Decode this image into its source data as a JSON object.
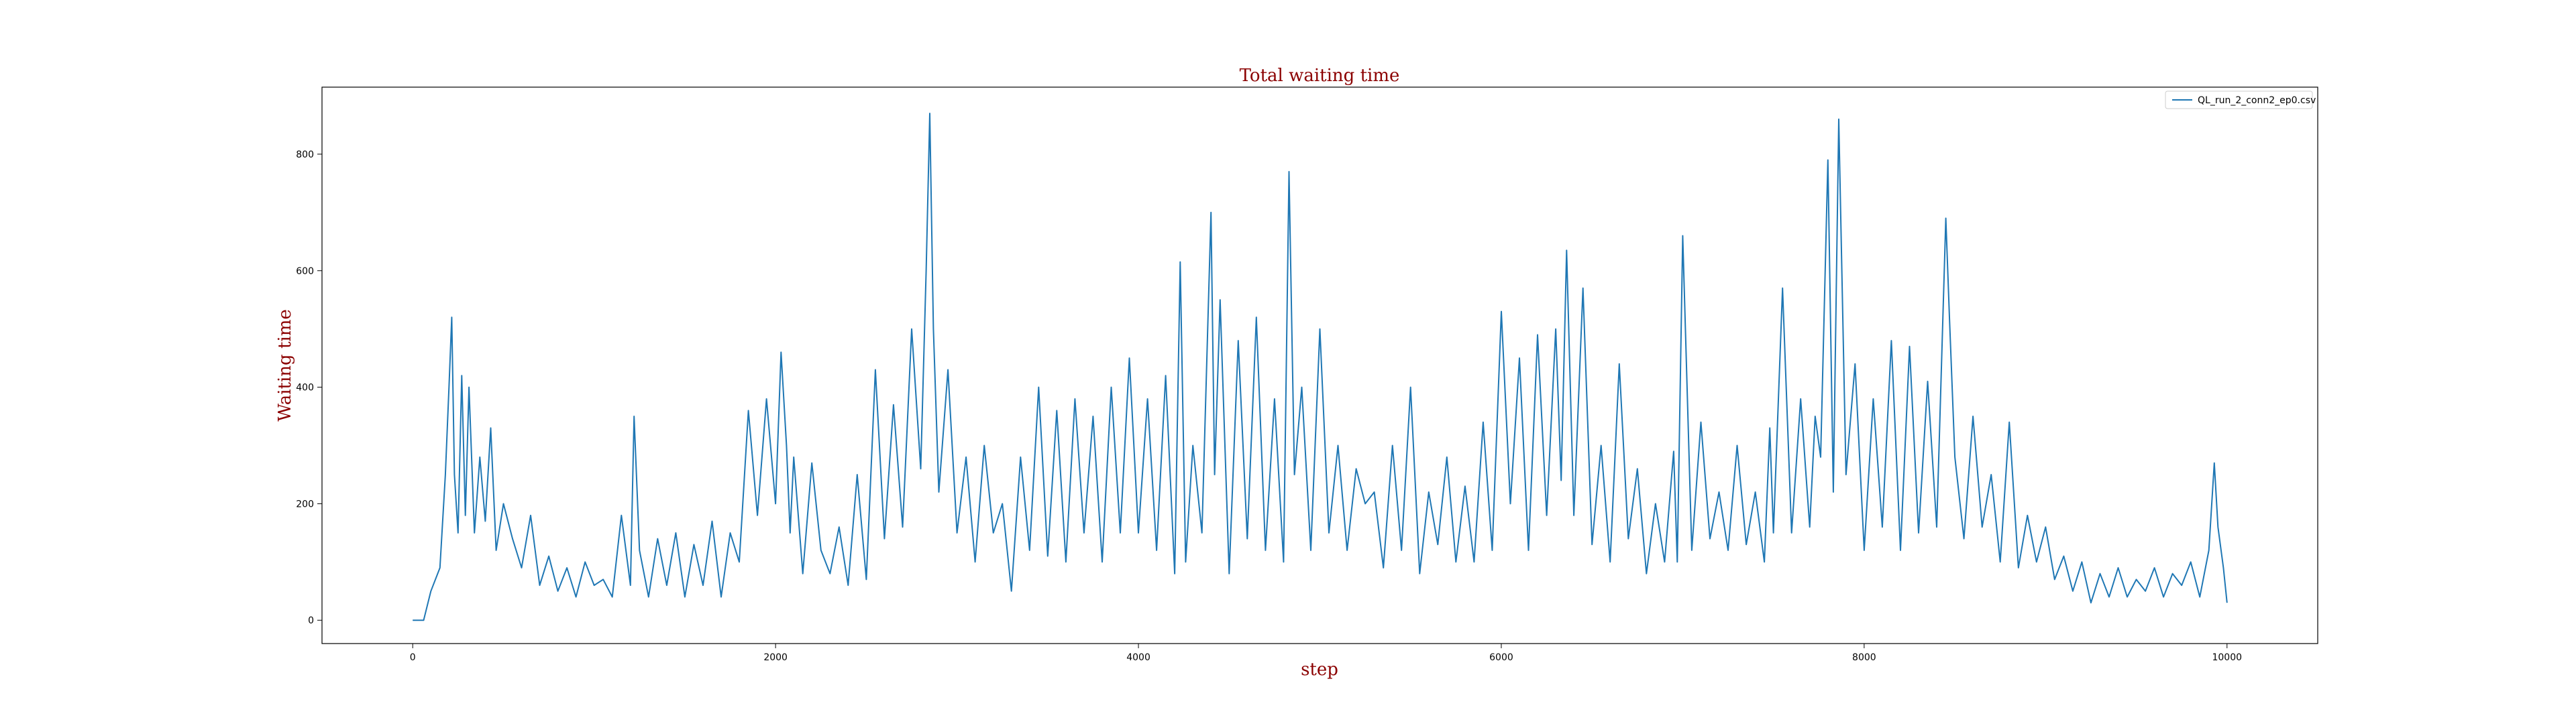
{
  "chart_data": {
    "type": "line",
    "title": "Total waiting time",
    "xlabel": "step",
    "ylabel": "Waiting time",
    "xlim": [
      -500,
      10500
    ],
    "ylim": [
      -40,
      915
    ],
    "xticks": [
      0,
      2000,
      4000,
      6000,
      8000,
      10000
    ],
    "yticks": [
      0,
      200,
      400,
      600,
      800
    ],
    "grid": false,
    "legend": {
      "position": "top-right"
    },
    "series": [
      {
        "name": "QL_run_2_conn2_ep0.csv",
        "color": "#1f77b4",
        "x": [
          0,
          60,
          100,
          150,
          180,
          200,
          215,
          230,
          250,
          270,
          290,
          310,
          340,
          370,
          400,
          430,
          460,
          500,
          550,
          600,
          650,
          700,
          750,
          800,
          850,
          900,
          950,
          1000,
          1050,
          1100,
          1150,
          1200,
          1220,
          1250,
          1300,
          1350,
          1400,
          1450,
          1500,
          1550,
          1600,
          1650,
          1700,
          1750,
          1800,
          1850,
          1900,
          1950,
          2000,
          2030,
          2060,
          2080,
          2100,
          2150,
          2200,
          2250,
          2300,
          2350,
          2400,
          2450,
          2500,
          2550,
          2600,
          2650,
          2700,
          2750,
          2800,
          2830,
          2850,
          2870,
          2900,
          2950,
          3000,
          3050,
          3100,
          3150,
          3200,
          3250,
          3300,
          3350,
          3400,
          3450,
          3500,
          3550,
          3600,
          3650,
          3700,
          3750,
          3800,
          3850,
          3900,
          3950,
          4000,
          4050,
          4100,
          4150,
          4200,
          4230,
          4260,
          4300,
          4350,
          4400,
          4420,
          4450,
          4500,
          4550,
          4600,
          4650,
          4700,
          4750,
          4800,
          4830,
          4860,
          4900,
          4950,
          5000,
          5050,
          5100,
          5150,
          5200,
          5250,
          5300,
          5350,
          5400,
          5450,
          5500,
          5550,
          5600,
          5650,
          5700,
          5750,
          5800,
          5850,
          5900,
          5950,
          6000,
          6050,
          6100,
          6150,
          6200,
          6250,
          6300,
          6330,
          6360,
          6400,
          6450,
          6500,
          6550,
          6600,
          6650,
          6700,
          6750,
          6800,
          6850,
          6900,
          6950,
          6970,
          7000,
          7050,
          7100,
          7150,
          7200,
          7250,
          7300,
          7350,
          7400,
          7450,
          7480,
          7500,
          7550,
          7600,
          7650,
          7700,
          7730,
          7760,
          7800,
          7830,
          7860,
          7900,
          7950,
          8000,
          8050,
          8100,
          8150,
          8200,
          8250,
          8300,
          8350,
          8400,
          8450,
          8470,
          8500,
          8550,
          8600,
          8650,
          8700,
          8750,
          8800,
          8850,
          8900,
          8950,
          9000,
          9050,
          9100,
          9150,
          9200,
          9250,
          9300,
          9350,
          9400,
          9450,
          9500,
          9550,
          9600,
          9650,
          9700,
          9750,
          9800,
          9850,
          9900,
          9930,
          9950,
          9980,
          10000
        ],
        "values": [
          0,
          0,
          50,
          90,
          250,
          400,
          520,
          250,
          150,
          420,
          180,
          400,
          150,
          280,
          170,
          330,
          120,
          200,
          140,
          90,
          180,
          60,
          110,
          50,
          90,
          40,
          100,
          60,
          70,
          40,
          180,
          60,
          350,
          120,
          40,
          140,
          60,
          150,
          40,
          130,
          60,
          170,
          40,
          150,
          100,
          360,
          180,
          380,
          200,
          460,
          300,
          150,
          280,
          80,
          270,
          120,
          80,
          160,
          60,
          250,
          70,
          430,
          140,
          370,
          160,
          500,
          260,
          600,
          870,
          500,
          220,
          430,
          150,
          280,
          100,
          300,
          150,
          200,
          50,
          280,
          120,
          400,
          110,
          360,
          100,
          380,
          150,
          350,
          100,
          400,
          150,
          450,
          150,
          380,
          120,
          420,
          80,
          615,
          100,
          300,
          150,
          700,
          250,
          550,
          80,
          480,
          140,
          520,
          120,
          380,
          100,
          770,
          250,
          400,
          120,
          500,
          150,
          300,
          120,
          260,
          200,
          220,
          90,
          300,
          120,
          400,
          80,
          220,
          130,
          280,
          100,
          230,
          100,
          340,
          120,
          530,
          200,
          450,
          120,
          490,
          180,
          500,
          240,
          635,
          180,
          570,
          130,
          300,
          100,
          440,
          140,
          260,
          80,
          200,
          100,
          290,
          100,
          660,
          120,
          340,
          140,
          220,
          120,
          300,
          130,
          220,
          100,
          330,
          150,
          570,
          150,
          380,
          160,
          350,
          280,
          790,
          220,
          860,
          250,
          440,
          120,
          380,
          160,
          480,
          120,
          470,
          150,
          410,
          160,
          690,
          520,
          280,
          140,
          350,
          160,
          250,
          100,
          340,
          90,
          180,
          100,
          160,
          70,
          110,
          50,
          100,
          30,
          80,
          40,
          90,
          40,
          70,
          50,
          90,
          40,
          80,
          60,
          100,
          40,
          120,
          270,
          160,
          90,
          30
        ]
      }
    ]
  }
}
